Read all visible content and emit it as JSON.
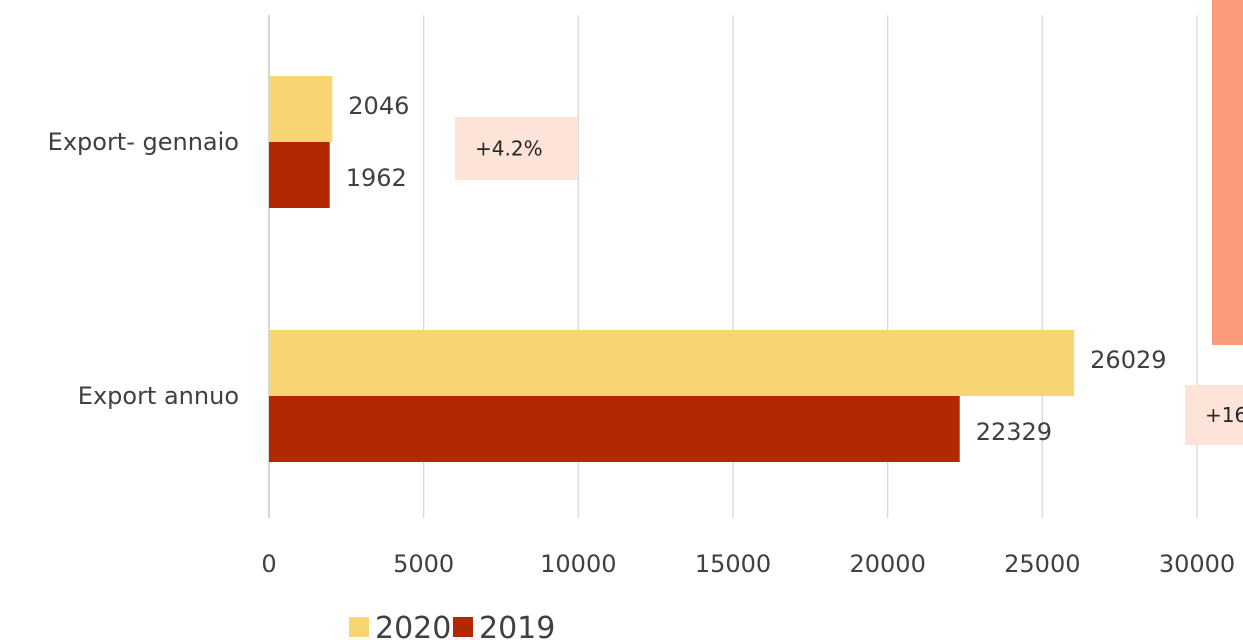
{
  "chart_data": {
    "type": "bar",
    "orientation": "horizontal",
    "categories": [
      "Export- gennaio",
      "Export annuo"
    ],
    "series": [
      {
        "name": "2020",
        "values": [
          2046,
          26029
        ],
        "color": "#f7d572"
      },
      {
        "name": "2019",
        "values": [
          1962,
          22329
        ],
        "color": "#b22800"
      }
    ],
    "xlim": [
      0,
      30000
    ],
    "xticks": [
      "0",
      "5000",
      "10000",
      "15000",
      "20000",
      "25000",
      "30000"
    ],
    "grid": "vertical",
    "legend_position": "bottom",
    "annotations": [
      {
        "text": "+4.2%",
        "category": "Export- gennaio"
      },
      {
        "text": "+16",
        "category": "Export annuo"
      }
    ],
    "annotation_fill": "#fde3d8",
    "accent_bar_color": "#fe9a7c",
    "gridline_color": "#d9d9d9",
    "axis_color": "#bfbfbf"
  }
}
